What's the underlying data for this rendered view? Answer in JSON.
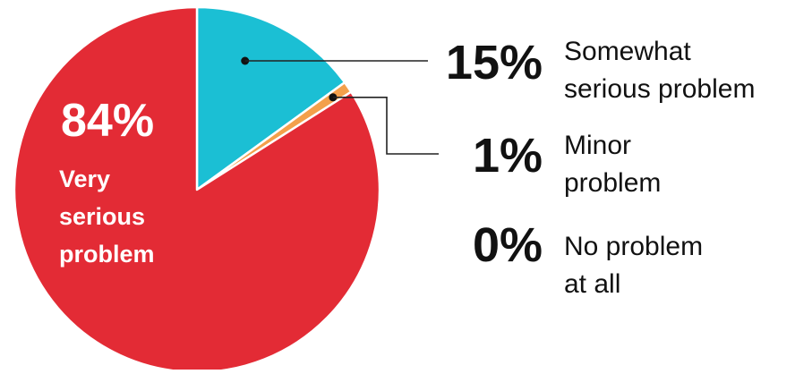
{
  "chart_data": {
    "type": "pie",
    "start_angle_deg": 0,
    "direction": "clockwise",
    "slices": [
      {
        "name": "Somewhat serious problem",
        "value": 15,
        "value_label": "15%",
        "label_lines": [
          "Somewhat",
          "serious problem"
        ],
        "color": "#1bbfd4"
      },
      {
        "name": "Minor problem",
        "value": 1,
        "value_label": "1%",
        "label_lines": [
          "Minor",
          "problem"
        ],
        "color": "#f3a04b"
      },
      {
        "name": "No problem at all",
        "value": 0,
        "value_label": "0%",
        "label_lines": [
          "No problem",
          "at all"
        ],
        "color": "#cccccc"
      },
      {
        "name": "Very serious problem",
        "value": 84,
        "value_label": "84%",
        "label_lines": [
          "Very",
          "serious",
          "problem"
        ],
        "color": "#e32b35"
      }
    ]
  }
}
